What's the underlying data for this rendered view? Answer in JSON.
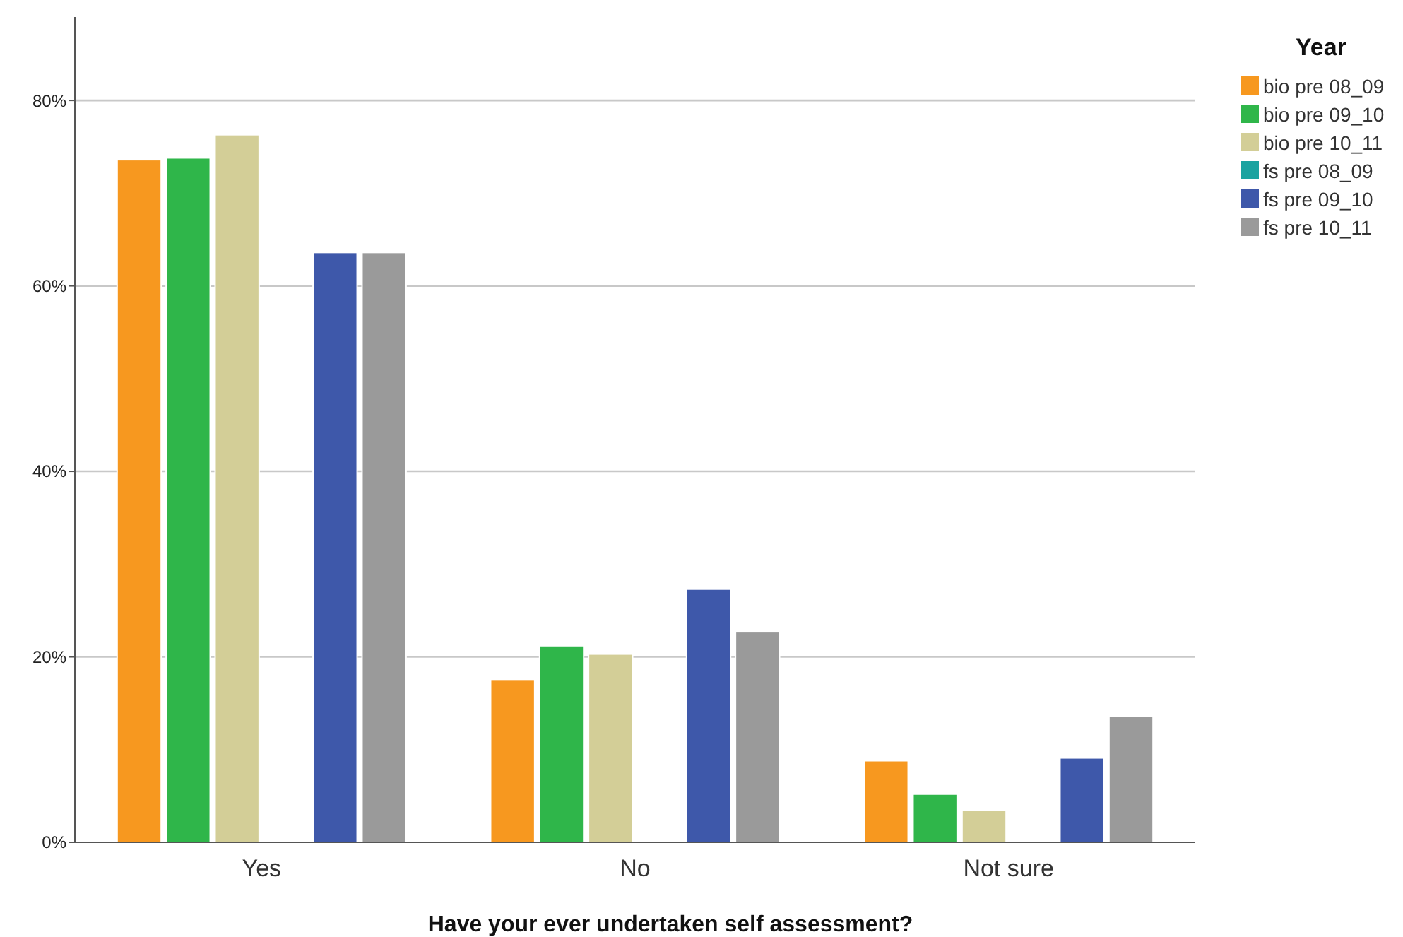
{
  "chart_data": {
    "type": "bar",
    "xlabel": "Have your ever undertaken self assessment?",
    "legend_title": "Year",
    "legend": "right",
    "grid": "y",
    "categories": [
      "Yes",
      "No",
      "Not sure"
    ],
    "ylim": [
      0,
      89
    ],
    "yticks": [
      {
        "value": 0,
        "label": "0%"
      },
      {
        "value": 20,
        "label": "20%"
      },
      {
        "value": 40,
        "label": "40%"
      },
      {
        "value": 60,
        "label": "60%"
      },
      {
        "value": 80,
        "label": "80%"
      }
    ],
    "series": [
      {
        "name": "bio pre 08_09",
        "color": "#f7981f",
        "values": [
          73.6,
          17.5,
          8.8
        ]
      },
      {
        "name": "bio pre 09_10",
        "color": "#2fb64a",
        "values": [
          73.8,
          21.2,
          5.2
        ]
      },
      {
        "name": "bio pre 10_11",
        "color": "#d3ce97",
        "values": [
          76.3,
          20.3,
          3.5
        ]
      },
      {
        "name": "fs pre 08_09",
        "color": "#1aa3a0",
        "values": [
          null,
          null,
          null
        ]
      },
      {
        "name": "fs pre 09_10",
        "color": "#3e58aa",
        "values": [
          63.6,
          27.3,
          9.1
        ]
      },
      {
        "name": "fs pre 10_11",
        "color": "#9a9a9a",
        "values": [
          63.6,
          22.7,
          13.6
        ]
      }
    ]
  }
}
